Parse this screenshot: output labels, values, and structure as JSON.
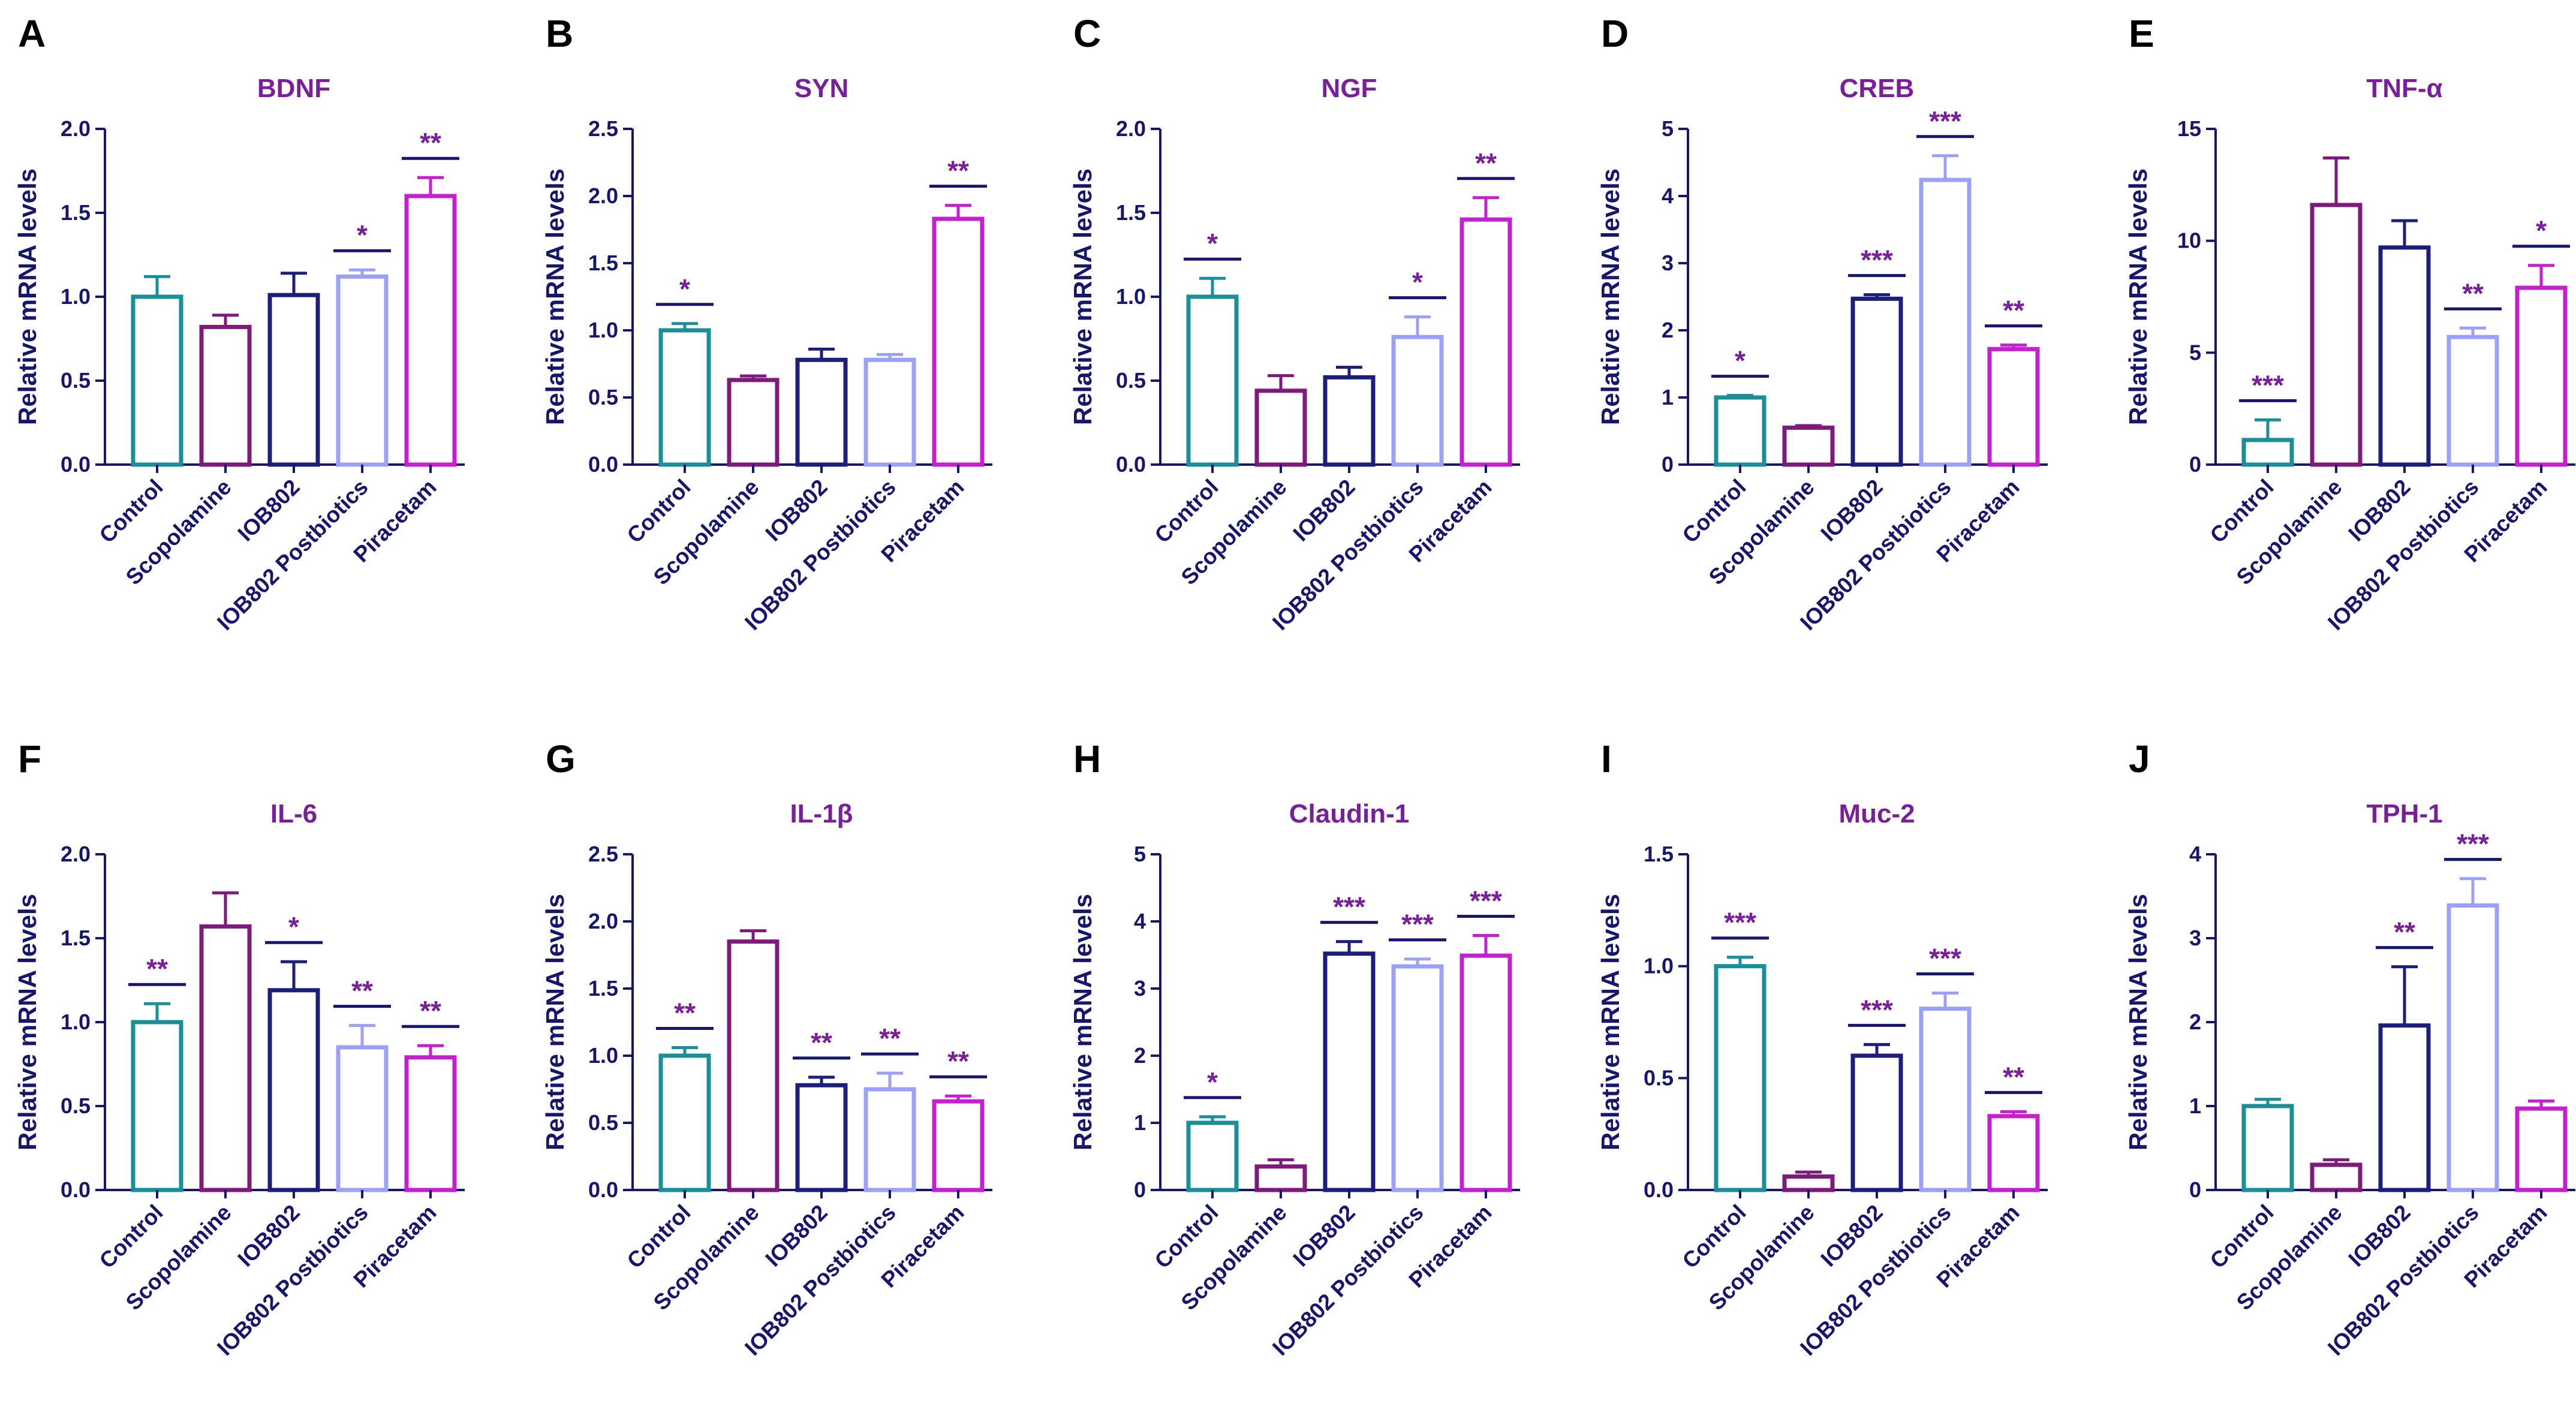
{
  "figure": {
    "ylabel": "Relative mRNA levels",
    "categories": [
      "Control",
      "Scopolamine",
      "IOB802",
      "IOB802 Postbiotics",
      "Piracetam"
    ],
    "colors": [
      "#1a8f99",
      "#7e1a7c",
      "#1c1f7a",
      "#9aa1f7",
      "#c51fcf"
    ]
  },
  "chart_data": [
    {
      "type": "bar",
      "panel": "A",
      "title": "BDNF",
      "ylabel": "Relative mRNA levels",
      "categories": [
        "Control",
        "Scopolamine",
        "IOB802",
        "IOB802 Postbiotics",
        "Piracetam"
      ],
      "values": [
        1.0,
        0.82,
        1.01,
        1.12,
        1.6
      ],
      "errors": [
        0.12,
        0.07,
        0.13,
        0.04,
        0.11
      ],
      "significance": [
        "",
        "",
        "",
        "*",
        "**"
      ],
      "ylim": [
        0,
        2.0
      ],
      "yticks": [
        0,
        0.5,
        1.0,
        1.5,
        2.0
      ],
      "ytick_labels": [
        "0.0",
        "0.5",
        "1.0",
        "1.5",
        "2.0"
      ]
    },
    {
      "type": "bar",
      "panel": "B",
      "title": "SYN",
      "ylabel": "Relative mRNA levels",
      "categories": [
        "Control",
        "Scopolamine",
        "IOB802",
        "IOB802 Postbiotics",
        "Piracetam"
      ],
      "values": [
        1.0,
        0.63,
        0.78,
        0.78,
        1.83
      ],
      "errors": [
        0.05,
        0.03,
        0.08,
        0.04,
        0.1
      ],
      "significance": [
        "*",
        "",
        "",
        "",
        "**"
      ],
      "ylim": [
        0,
        2.5
      ],
      "yticks": [
        0,
        0.5,
        1.0,
        1.5,
        2.0,
        2.5
      ],
      "ytick_labels": [
        "0.0",
        "0.5",
        "1.0",
        "1.5",
        "2.0",
        "2.5"
      ]
    },
    {
      "type": "bar",
      "panel": "C",
      "title": "NGF",
      "ylabel": "Relative mRNA levels",
      "categories": [
        "Control",
        "Scopolamine",
        "IOB802",
        "IOB802 Postbiotics",
        "Piracetam"
      ],
      "values": [
        1.0,
        0.44,
        0.52,
        0.76,
        1.46
      ],
      "errors": [
        0.11,
        0.09,
        0.06,
        0.12,
        0.13
      ],
      "significance": [
        "*",
        "",
        "",
        "*",
        "**"
      ],
      "ylim": [
        0,
        2.0
      ],
      "yticks": [
        0,
        0.5,
        1.0,
        1.5,
        2.0
      ],
      "ytick_labels": [
        "0.0",
        "0.5",
        "1.0",
        "1.5",
        "2.0"
      ]
    },
    {
      "type": "bar",
      "panel": "D",
      "title": "CREB",
      "ylabel": "Relative mRNA levels",
      "categories": [
        "Control",
        "Scopolamine",
        "IOB802",
        "IOB802 Postbiotics",
        "Piracetam"
      ],
      "values": [
        1.0,
        0.55,
        2.47,
        4.24,
        1.72
      ],
      "errors": [
        0.03,
        0.03,
        0.06,
        0.36,
        0.06
      ],
      "significance": [
        "*",
        "",
        "***",
        "***",
        "**"
      ],
      "ylim": [
        0,
        5
      ],
      "yticks": [
        0,
        1,
        2,
        3,
        4,
        5
      ],
      "ytick_labels": [
        "0",
        "1",
        "2",
        "3",
        "4",
        "5"
      ]
    },
    {
      "type": "bar",
      "panel": "E",
      "title": "TNF-α",
      "ylabel": "Relative mRNA levels",
      "categories": [
        "Control",
        "Scopolamine",
        "IOB802",
        "IOB802 Postbiotics",
        "Piracetam"
      ],
      "values": [
        1.1,
        11.6,
        9.7,
        5.7,
        7.9
      ],
      "errors": [
        0.9,
        2.1,
        1.2,
        0.4,
        1.0
      ],
      "significance": [
        "***",
        "",
        "",
        "**",
        "*"
      ],
      "ylim": [
        0,
        15
      ],
      "yticks": [
        0,
        5,
        10,
        15
      ],
      "ytick_labels": [
        "0",
        "5",
        "10",
        "15"
      ]
    },
    {
      "type": "bar",
      "panel": "F",
      "title": "IL-6",
      "ylabel": "Relative mRNA levels",
      "categories": [
        "Control",
        "Scopolamine",
        "IOB802",
        "IOB802 Postbiotics",
        "Piracetam"
      ],
      "values": [
        1.0,
        1.57,
        1.19,
        0.85,
        0.79
      ],
      "errors": [
        0.11,
        0.2,
        0.17,
        0.13,
        0.07
      ],
      "significance": [
        "**",
        "",
        "*",
        "**",
        "**"
      ],
      "ylim": [
        0,
        2.0
      ],
      "yticks": [
        0,
        0.5,
        1.0,
        1.5,
        2.0
      ],
      "ytick_labels": [
        "0.0",
        "0.5",
        "1.0",
        "1.5",
        "2.0"
      ]
    },
    {
      "type": "bar",
      "panel": "G",
      "title": "IL-1β",
      "ylabel": "Relative mRNA levels",
      "categories": [
        "Control",
        "Scopolamine",
        "IOB802",
        "IOB802 Postbiotics",
        "Piracetam"
      ],
      "values": [
        1.0,
        1.85,
        0.78,
        0.75,
        0.66
      ],
      "errors": [
        0.06,
        0.08,
        0.06,
        0.12,
        0.04
      ],
      "significance": [
        "**",
        "",
        "**",
        "**",
        "**"
      ],
      "ylim": [
        0,
        2.5
      ],
      "yticks": [
        0,
        0.5,
        1.0,
        1.5,
        2.0,
        2.5
      ],
      "ytick_labels": [
        "0.0",
        "0.5",
        "1.0",
        "1.5",
        "2.0",
        "2.5"
      ]
    },
    {
      "type": "bar",
      "panel": "H",
      "title": "Claudin-1",
      "ylabel": "Relative mRNA levels",
      "categories": [
        "Control",
        "Scopolamine",
        "IOB802",
        "IOB802 Postbiotics",
        "Piracetam"
      ],
      "values": [
        1.0,
        0.35,
        3.52,
        3.33,
        3.49
      ],
      "errors": [
        0.09,
        0.1,
        0.18,
        0.11,
        0.3
      ],
      "significance": [
        "*",
        "",
        "***",
        "***",
        "***"
      ],
      "ylim": [
        0,
        5
      ],
      "yticks": [
        0,
        1,
        2,
        3,
        4,
        5
      ],
      "ytick_labels": [
        "0",
        "1",
        "2",
        "3",
        "4",
        "5"
      ]
    },
    {
      "type": "bar",
      "panel": "I",
      "title": "Muc-2",
      "ylabel": "Relative mRNA levels",
      "categories": [
        "Control",
        "Scopolamine",
        "IOB802",
        "IOB802 Postbiotics",
        "Piracetam"
      ],
      "values": [
        1.0,
        0.06,
        0.6,
        0.81,
        0.33
      ],
      "errors": [
        0.04,
        0.02,
        0.05,
        0.07,
        0.02
      ],
      "significance": [
        "***",
        "",
        "***",
        "***",
        "**"
      ],
      "ylim": [
        0,
        1.5
      ],
      "yticks": [
        0,
        0.5,
        1.0,
        1.5
      ],
      "ytick_labels": [
        "0.0",
        "0.5",
        "1.0",
        "1.5"
      ]
    },
    {
      "type": "bar",
      "panel": "J",
      "title": "TPH-1",
      "ylabel": "Relative mRNA levels",
      "categories": [
        "Control",
        "Scopolamine",
        "IOB802",
        "IOB802 Postbiotics",
        "Piracetam"
      ],
      "values": [
        1.0,
        0.3,
        1.96,
        3.39,
        0.97
      ],
      "errors": [
        0.08,
        0.06,
        0.7,
        0.32,
        0.09
      ],
      "significance": [
        "",
        "",
        "**",
        "***",
        ""
      ],
      "ylim": [
        0,
        4
      ],
      "yticks": [
        0,
        1,
        2,
        3,
        4
      ],
      "ytick_labels": [
        "0",
        "1",
        "2",
        "3",
        "4"
      ]
    }
  ]
}
